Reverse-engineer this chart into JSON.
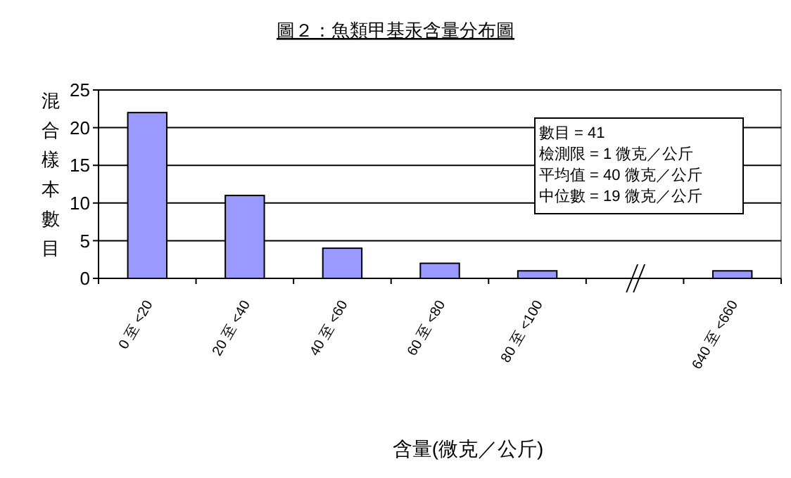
{
  "chart_data": {
    "type": "bar",
    "title": "圖２：魚類甲基汞含量分布圖",
    "xlabel": "含量(微克／公斤)",
    "ylabel": "混合樣本數目",
    "categories": [
      "0 至 <20",
      "20 至 <40",
      "40 至 <60",
      "60 至 <80",
      "80 至 <100",
      null,
      "640 至 <660"
    ],
    "values": [
      22,
      11,
      4,
      2,
      1,
      null,
      1
    ],
    "color": "#9999ff",
    "ylim": [
      0,
      25
    ],
    "yticks": [
      0,
      5,
      10,
      15,
      20,
      25
    ],
    "grid": "y",
    "annotations": [
      "數目 = 41",
      "檢測限 = 1 微克／公斤",
      "平均值 = 40 微克／公斤",
      "中位數 = 19 微克／公斤"
    ]
  }
}
